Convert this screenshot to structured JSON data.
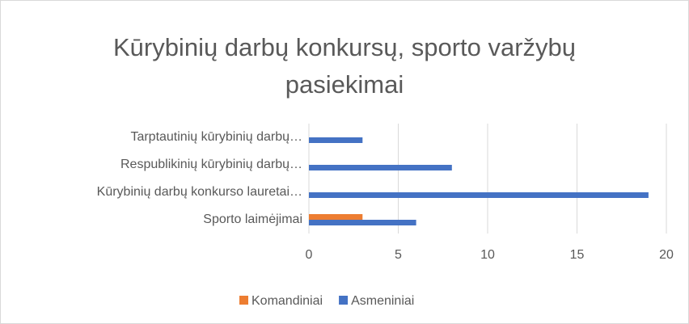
{
  "chart_data": {
    "type": "bar",
    "orientation": "horizontal",
    "title": "Kūrybinių darbų konkursų, sporto varžybų pasiekimai",
    "categories": [
      "Tarptautinių kūrybinių darbų…",
      "Respublikinių kūrybinių darbų…",
      "Kūrybinių darbų konkurso lauretai…",
      "Sporto laimėjimai"
    ],
    "series": [
      {
        "name": "Komandiniai",
        "color": "#ed7d31",
        "values": [
          0,
          0,
          0,
          3
        ]
      },
      {
        "name": "Asmeniniai",
        "color": "#4472c4",
        "values": [
          3,
          8,
          19,
          6
        ]
      }
    ],
    "xlim": [
      0,
      20
    ],
    "xticks": [
      0,
      5,
      10,
      15,
      20
    ],
    "grid": true,
    "legend": "bottom"
  }
}
